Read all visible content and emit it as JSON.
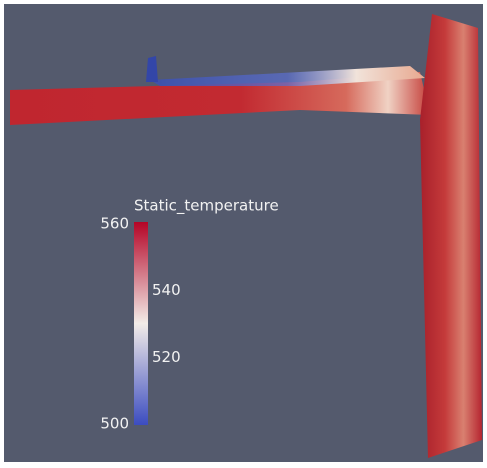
{
  "legend": {
    "title": "Static_temperature",
    "ticks": [
      560,
      540,
      520,
      500
    ]
  }
}
